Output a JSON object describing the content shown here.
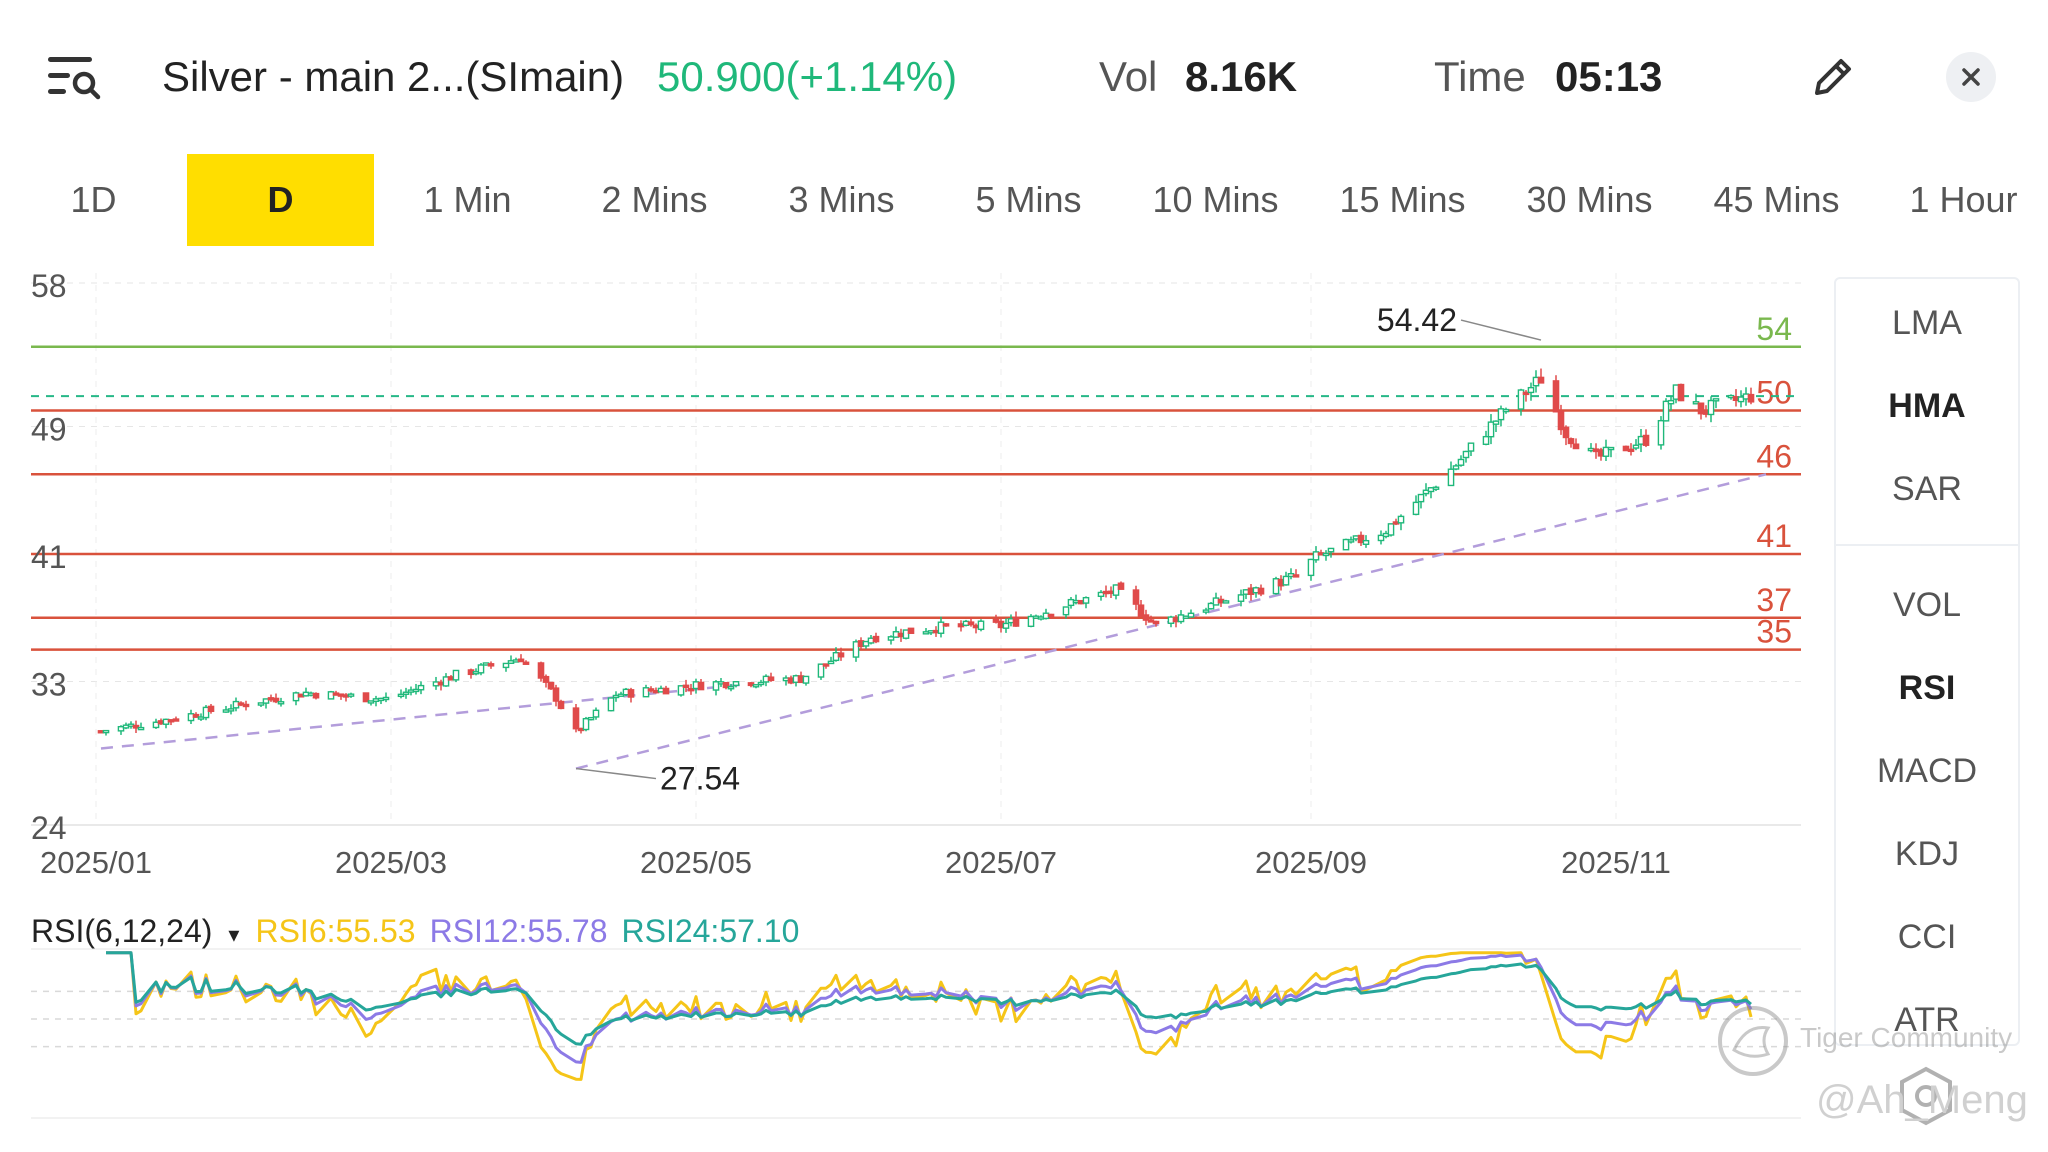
{
  "header": {
    "title": "Silver - main 2...(SImain)",
    "price_change": "50.900(+1.14%)",
    "vol_label": "Vol",
    "vol_value": "8.16K",
    "time_label": "Time",
    "time_value": "05:13",
    "icons": {
      "menu": "menu-search-icon",
      "edit": "pencil-icon",
      "close": "close-icon"
    }
  },
  "tabs": [
    "1D",
    "D",
    "1 Min",
    "2 Mins",
    "3 Mins",
    "5 Mins",
    "10 Mins",
    "15 Mins",
    "30 Mins",
    "45 Mins",
    "1 Hour"
  ],
  "active_tab": "D",
  "side_panel": {
    "main_indicators": [
      "LMA",
      "HMA",
      "SAR"
    ],
    "sub_indicators": [
      "VOL",
      "RSI",
      "MACD",
      "KDJ",
      "CCI",
      "ATR"
    ],
    "active": [
      "HMA",
      "RSI"
    ]
  },
  "rsi_legend": {
    "label": "RSI(6,12,24)",
    "caret": "▾",
    "rsi6": "RSI6:55.53",
    "rsi12": "RSI12:55.78",
    "rsi24": "RSI24:57.10"
  },
  "watermark": {
    "text": "Tiger Community",
    "handle": "@Ah_Meng"
  },
  "colors": {
    "up": "#1fb87a",
    "down": "#e04a4a",
    "price_text": "#1fb87a",
    "tab_active_bg": "#ffde00",
    "resistance_top": "#7ab84e",
    "support_lines": "#d9523c",
    "trendline": "#b39ddb",
    "last_price_line": "#26b887",
    "rsi6": "#f5c518",
    "rsi12": "#8c7ae6",
    "rsi24": "#26a69a"
  },
  "chart_data": {
    "type": "candlestick",
    "y_ticks": [
      "58",
      "49",
      "41",
      "33",
      "24"
    ],
    "x_ticks": [
      "2025/01",
      "2025/03",
      "2025/05",
      "2025/07",
      "2025/09",
      "2025/11"
    ],
    "ylim": [
      24,
      58
    ],
    "horizontal_levels": [
      {
        "value": 54,
        "label": "54",
        "color": "#7ab84e"
      },
      {
        "value": 50,
        "label": "50",
        "color": "#d9523c"
      },
      {
        "value": 46,
        "label": "46",
        "color": "#d9523c"
      },
      {
        "value": 41,
        "label": "41",
        "color": "#d9523c"
      },
      {
        "value": 37,
        "label": "37",
        "color": "#d9523c"
      },
      {
        "value": 35,
        "label": "35",
        "color": "#d9523c"
      }
    ],
    "last_price": 50.9,
    "annotations": [
      {
        "date": "2025/10/17",
        "value": 54.42,
        "label": "54.42"
      },
      {
        "date": "2025/04/07",
        "value": 27.54,
        "label": "27.54"
      }
    ],
    "trendlines": [
      {
        "from": [
          "2025/01/02",
          28.8
        ],
        "to": [
          "2025/05/10",
          32.8
        ]
      },
      {
        "from": [
          "2025/04/07",
          27.54
        ],
        "to": [
          "2025/12/01",
          46.0
        ]
      }
    ],
    "closes": [
      {
        "date": "2025/01/02",
        "close": 29.9
      },
      {
        "date": "2025/01/15",
        "close": 30.6
      },
      {
        "date": "2025/02/03",
        "close": 31.8
      },
      {
        "date": "2025/02/12",
        "close": 32.3
      },
      {
        "date": "2025/02/28",
        "close": 31.9
      },
      {
        "date": "2025/03/14",
        "close": 33.4
      },
      {
        "date": "2025/03/27",
        "close": 34.5
      },
      {
        "date": "2025/04/03",
        "close": 32.0
      },
      {
        "date": "2025/04/07",
        "close": 29.8
      },
      {
        "date": "2025/04/15",
        "close": 32.2
      },
      {
        "date": "2025/05/05",
        "close": 32.9
      },
      {
        "date": "2025/05/22",
        "close": 33.2
      },
      {
        "date": "2025/06/05",
        "close": 35.8
      },
      {
        "date": "2025/06/18",
        "close": 36.4
      },
      {
        "date": "2025/07/01",
        "close": 36.5
      },
      {
        "date": "2025/07/14",
        "close": 37.8
      },
      {
        "date": "2025/07/24",
        "close": 38.7
      },
      {
        "date": "2025/08/01",
        "close": 36.6
      },
      {
        "date": "2025/08/14",
        "close": 38.0
      },
      {
        "date": "2025/08/29",
        "close": 39.6
      },
      {
        "date": "2025/09/02",
        "close": 40.8
      },
      {
        "date": "2025/09/16",
        "close": 42.5
      },
      {
        "date": "2025/09/30",
        "close": 46.6
      },
      {
        "date": "2025/10/10",
        "close": 50.1
      },
      {
        "date": "2025/10/17",
        "close": 52.0
      },
      {
        "date": "2025/10/22",
        "close": 48.6
      },
      {
        "date": "2025/10/28",
        "close": 47.0
      },
      {
        "date": "2025/11/07",
        "close": 48.2
      },
      {
        "date": "2025/11/13",
        "close": 51.2
      },
      {
        "date": "2025/11/18",
        "close": 50.0
      },
      {
        "date": "2025/11/28",
        "close": 50.9
      }
    ],
    "rsi": {
      "label": "RSI(6,12,24)",
      "series": [
        {
          "name": "RSI6",
          "last": 55.53
        },
        {
          "name": "RSI12",
          "last": 55.78
        },
        {
          "name": "RSI24",
          "last": 57.1
        }
      ]
    }
  }
}
